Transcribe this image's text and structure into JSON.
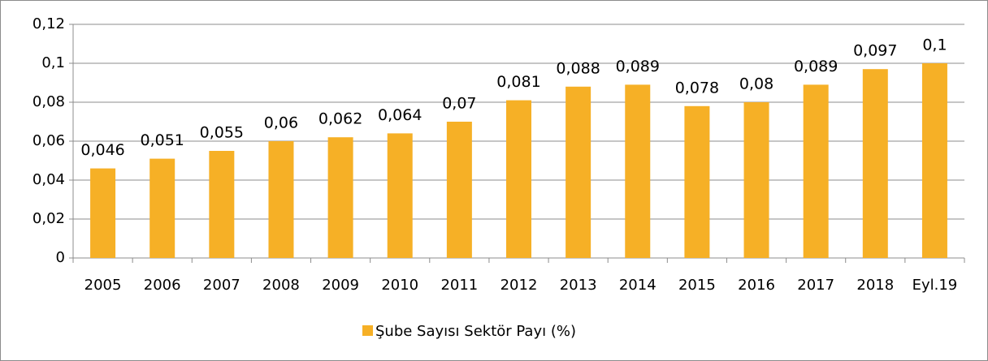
{
  "chart_data": {
    "type": "bar",
    "categories": [
      "2005",
      "2006",
      "2007",
      "2008",
      "2009",
      "2010",
      "2011",
      "2012",
      "2013",
      "2014",
      "2015",
      "2016",
      "2017",
      "2018",
      "Eyl.19"
    ],
    "series": [
      {
        "name": "Şube Sayısı Sektör Payı (%)",
        "color": "#f6b026",
        "values": [
          0.046,
          0.051,
          0.055,
          0.06,
          0.062,
          0.064,
          0.07,
          0.081,
          0.088,
          0.089,
          0.078,
          0.08,
          0.089,
          0.097,
          0.1
        ],
        "value_labels": [
          "0,046",
          "0,051",
          "0,055",
          "0,06",
          "0,062",
          "0,064",
          "0,07",
          "0,081",
          "0,088",
          "0,089",
          "0,078",
          "0,08",
          "0,089",
          "0,097",
          "0,1"
        ]
      }
    ],
    "ylim": [
      0,
      0.12
    ],
    "yticks": [
      0,
      {
        "value": 0.02,
        "label": "0,02"
      },
      {
        "value": 0.04,
        "label": "0,04"
      },
      {
        "value": 0.06,
        "label": "0,06"
      },
      {
        "value": 0.08,
        "label": "0,08"
      },
      {
        "value": 0.1,
        "label": "0,1"
      },
      {
        "value": 0.12,
        "label": "0,12"
      }
    ],
    "grid": true,
    "legend": "bottom"
  }
}
